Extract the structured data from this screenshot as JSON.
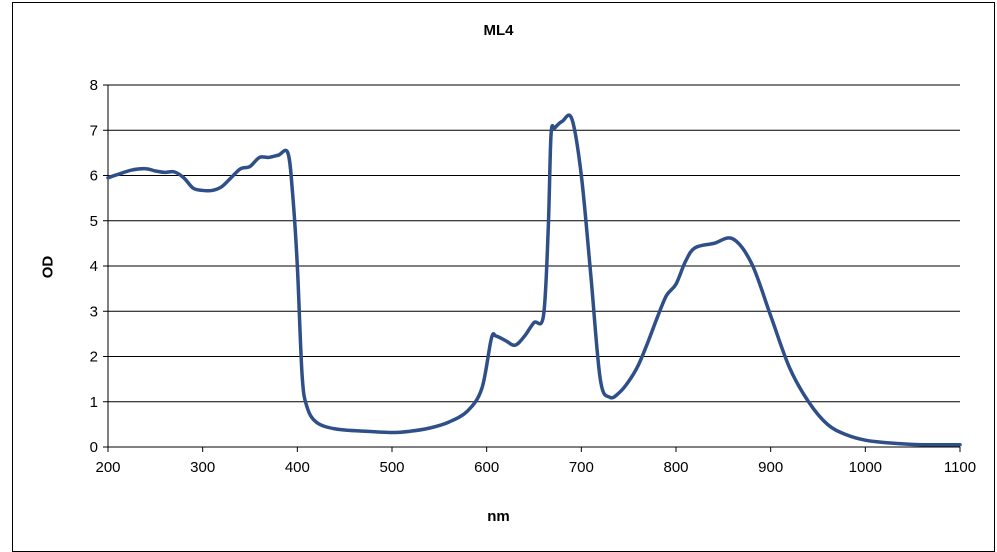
{
  "chart_data": {
    "type": "line",
    "title": "ML4",
    "xlabel": "nm",
    "ylabel": "OD",
    "xlim": [
      200,
      1100
    ],
    "ylim": [
      0,
      8
    ],
    "xticks": [
      200,
      300,
      400,
      500,
      600,
      700,
      800,
      900,
      1000,
      1100
    ],
    "yticks": [
      0,
      1,
      2,
      3,
      4,
      5,
      6,
      7,
      8
    ],
    "grid": "horizontal",
    "line_color": "#2f4f88",
    "series": [
      {
        "x": [
          200,
          210,
          225,
          240,
          250,
          260,
          270,
          280,
          290,
          300,
          310,
          320,
          330,
          340,
          350,
          360,
          370,
          380,
          390,
          395,
          400,
          405,
          410,
          420,
          440,
          470,
          500,
          520,
          540,
          560,
          580,
          595,
          605,
          610,
          620,
          630,
          640,
          650,
          660,
          665,
          668,
          672,
          680,
          690,
          700,
          710,
          720,
          730,
          740,
          750,
          760,
          770,
          780,
          790,
          800,
          810,
          820,
          840,
          860,
          880,
          900,
          920,
          940,
          960,
          980,
          1000,
          1020,
          1040,
          1060,
          1080,
          1100
        ],
        "y": [
          5.95,
          6.02,
          6.12,
          6.15,
          6.1,
          6.07,
          6.08,
          5.95,
          5.72,
          5.67,
          5.67,
          5.75,
          5.95,
          6.15,
          6.2,
          6.4,
          6.4,
          6.45,
          6.5,
          5.6,
          4.0,
          1.6,
          0.9,
          0.55,
          0.4,
          0.35,
          0.32,
          0.35,
          0.42,
          0.55,
          0.8,
          1.3,
          2.4,
          2.45,
          2.35,
          2.25,
          2.45,
          2.75,
          2.9,
          4.8,
          6.9,
          7.05,
          7.2,
          7.25,
          6.0,
          3.8,
          1.5,
          1.1,
          1.2,
          1.45,
          1.8,
          2.3,
          2.85,
          3.35,
          3.6,
          4.1,
          4.4,
          4.5,
          4.6,
          4.05,
          2.9,
          1.75,
          1.0,
          0.5,
          0.27,
          0.15,
          0.1,
          0.07,
          0.05,
          0.05,
          0.05
        ]
      }
    ]
  }
}
